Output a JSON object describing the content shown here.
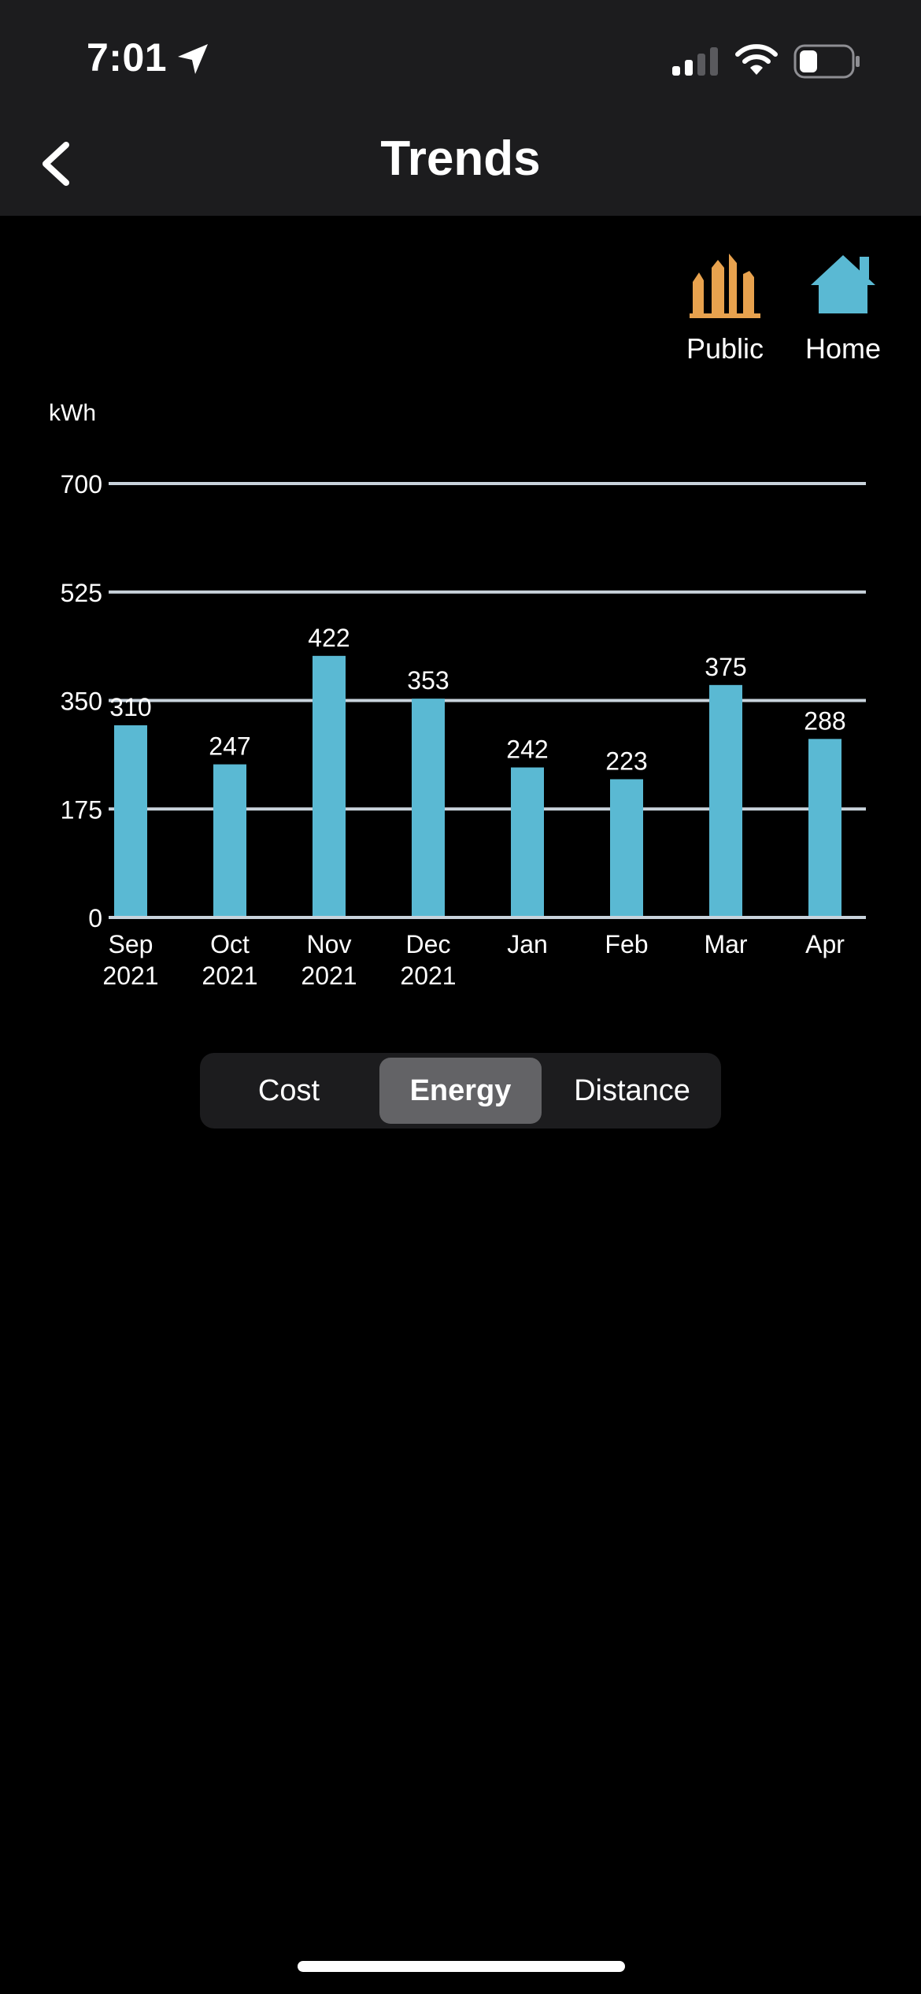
{
  "status_bar": {
    "time": "7:01",
    "icons": [
      "location-arrow-icon",
      "cell-signal-icon",
      "wifi-icon",
      "battery-icon"
    ]
  },
  "nav": {
    "title": "Trends",
    "back_icon": "chevron-left-icon"
  },
  "filters": [
    {
      "label": "Public",
      "icon": "city-buildings-icon",
      "color": "#e8a24e"
    },
    {
      "label": "Home",
      "icon": "house-icon",
      "color": "#5ab9d3"
    }
  ],
  "chart_data": {
    "type": "bar",
    "ylabel": "kWh",
    "ylim": [
      0,
      700
    ],
    "yticks": [
      0,
      175,
      350,
      525,
      700
    ],
    "categories": [
      [
        "Sep",
        "2021"
      ],
      [
        "Oct",
        "2021"
      ],
      [
        "Nov",
        "2021"
      ],
      [
        "Dec",
        "2021"
      ],
      [
        "Jan",
        ""
      ],
      [
        "Feb",
        ""
      ],
      [
        "Mar",
        ""
      ],
      [
        "Apr",
        ""
      ]
    ],
    "values": [
      310,
      247,
      422,
      353,
      242,
      223,
      375,
      288
    ],
    "bar_color": "#5ab9d3",
    "grid": true
  },
  "segments": {
    "items": [
      "Cost",
      "Energy",
      "Distance"
    ],
    "selected": "Energy"
  },
  "colors": {
    "background": "#000000",
    "header": "#1c1c1e",
    "selected_segment": "#636366"
  }
}
